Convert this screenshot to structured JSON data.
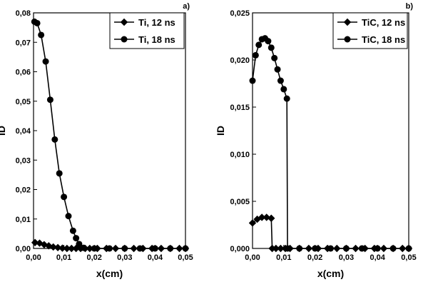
{
  "chart_data": [
    {
      "type": "line",
      "panel_label": "a)",
      "xlabel": "x(cm)",
      "ylabel": "ID",
      "xlim": [
        0,
        0.05
      ],
      "ylim": [
        0,
        0.08
      ],
      "xticks": [
        {
          "value": 0,
          "label": "0,00"
        },
        {
          "value": 0.01,
          "label": "0,01"
        },
        {
          "value": 0.02,
          "label": "0,02"
        },
        {
          "value": 0.03,
          "label": "0,03"
        },
        {
          "value": 0.04,
          "label": "0,04"
        },
        {
          "value": 0.05,
          "label": "0,05"
        }
      ],
      "yticks": [
        {
          "value": 0,
          "label": "0,00"
        },
        {
          "value": 0.01,
          "label": "0,01"
        },
        {
          "value": 0.02,
          "label": "0,02"
        },
        {
          "value": 0.03,
          "label": "0,03"
        },
        {
          "value": 0.04,
          "label": "0,04"
        },
        {
          "value": 0.05,
          "label": "0,05"
        },
        {
          "value": 0.06,
          "label": "0,06"
        },
        {
          "value": 0.07,
          "label": "0,07"
        },
        {
          "value": 0.08,
          "label": "0,08"
        }
      ],
      "series": [
        {
          "name": "Ti, 12 ns",
          "marker": "diamond",
          "color": "#000000",
          "x": [
            0.0005,
            0.002,
            0.0035,
            0.005,
            0.0065,
            0.008,
            0.0095,
            0.011,
            0.0125,
            0.014,
            0.0155,
            0.017,
            0.0185,
            0.021,
            0.024,
            0.027,
            0.03,
            0.033,
            0.036,
            0.039,
            0.042,
            0.045,
            0.048,
            0.05
          ],
          "values": [
            0.002,
            0.0018,
            0.0013,
            0.0009,
            0.0005,
            0.0003,
            0.0001,
            0,
            0,
            0,
            0,
            0,
            0,
            0,
            0,
            0,
            0,
            0,
            0,
            0,
            0,
            0,
            0,
            0
          ]
        },
        {
          "name": "Ti, 18 ns",
          "marker": "circle",
          "color": "#000000",
          "x": [
            0.0003,
            0.0012,
            0.0025,
            0.004,
            0.0055,
            0.007,
            0.0085,
            0.01,
            0.0115,
            0.013,
            0.014,
            0.015,
            0.0165,
            0.02,
            0.025,
            0.03,
            0.035,
            0.04,
            0.045,
            0.05
          ],
          "values": [
            0.077,
            0.0765,
            0.0725,
            0.0635,
            0.0505,
            0.037,
            0.0255,
            0.0175,
            0.011,
            0.006,
            0.0035,
            0.0015,
            0.0002,
            0,
            0,
            0,
            0,
            0,
            0,
            0
          ]
        }
      ]
    },
    {
      "type": "line",
      "panel_label": "b)",
      "xlabel": "x(cm)",
      "ylabel": "ID",
      "xlim": [
        0,
        0.05
      ],
      "ylim": [
        0,
        0.025
      ],
      "xticks": [
        {
          "value": 0,
          "label": "0,00"
        },
        {
          "value": 0.01,
          "label": "0,01"
        },
        {
          "value": 0.02,
          "label": "0,02"
        },
        {
          "value": 0.03,
          "label": "0,03"
        },
        {
          "value": 0.04,
          "label": "0,04"
        },
        {
          "value": 0.05,
          "label": "0,05"
        }
      ],
      "yticks": [
        {
          "value": 0,
          "label": "0,000"
        },
        {
          "value": 0.005,
          "label": "0,005"
        },
        {
          "value": 0.01,
          "label": "0,010"
        },
        {
          "value": 0.015,
          "label": "0,015"
        },
        {
          "value": 0.02,
          "label": "0,020"
        },
        {
          "value": 0.025,
          "label": "0,025"
        }
      ],
      "series": [
        {
          "name": "TiC, 12 ns",
          "marker": "diamond",
          "color": "#000000",
          "x": [
            0,
            0.0015,
            0.003,
            0.0045,
            0.006,
            0.0063,
            0.0075,
            0.009,
            0.0105,
            0.012,
            0.015,
            0.018,
            0.021,
            0.024,
            0.027,
            0.03,
            0.033,
            0.036,
            0.039,
            0.042,
            0.045,
            0.048,
            0.05
          ],
          "values": [
            0.0027,
            0.0031,
            0.0033,
            0.0033,
            0.0032,
            0,
            0,
            0,
            0,
            0,
            0,
            0,
            0,
            0,
            0,
            0,
            0,
            0,
            0,
            0,
            0,
            0,
            0
          ]
        },
        {
          "name": "TiC, 18 ns",
          "marker": "circle",
          "color": "#000000",
          "x": [
            0,
            0.001,
            0.002,
            0.003,
            0.004,
            0.005,
            0.006,
            0.007,
            0.008,
            0.009,
            0.01,
            0.011,
            0.0112,
            0.015,
            0.02,
            0.025,
            0.03,
            0.035,
            0.04,
            0.045,
            0.05
          ],
          "values": [
            0.0178,
            0.0205,
            0.0216,
            0.0222,
            0.0223,
            0.022,
            0.0213,
            0.0202,
            0.019,
            0.0178,
            0.0169,
            0.0159,
            0,
            0,
            0,
            0,
            0,
            0,
            0,
            0,
            0
          ]
        }
      ]
    }
  ]
}
